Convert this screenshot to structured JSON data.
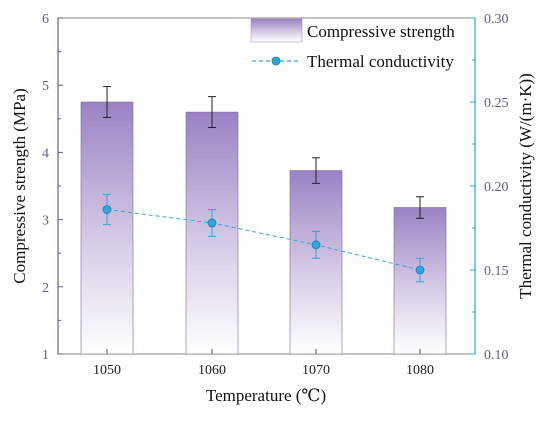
{
  "chart_data": {
    "type": "bar",
    "categories": [
      "1050",
      "1060",
      "1070",
      "1080"
    ],
    "series": [
      {
        "name": "Compressive strength",
        "type": "bar",
        "axis": "left",
        "values": [
          4.75,
          4.6,
          3.73,
          3.18
        ],
        "errors": [
          0.23,
          0.23,
          0.19,
          0.16
        ]
      },
      {
        "name": "Thermal conductivity",
        "type": "line",
        "axis": "right",
        "values": [
          0.186,
          0.178,
          0.165,
          0.15
        ],
        "errors": [
          0.009,
          0.008,
          0.008,
          0.007
        ]
      }
    ],
    "xlabel": "Temperature (℃)",
    "ylabel": "Compressive strength (MPa)",
    "y2label": "Thermal conductivity (W/(m·K))",
    "ylim": [
      1,
      6
    ],
    "y2lim": [
      0.1,
      0.3
    ],
    "yticks": [
      "1",
      "2",
      "3",
      "4",
      "5",
      "6"
    ],
    "y2ticks": [
      "0.10",
      "0.15",
      "0.20",
      "0.25",
      "0.30"
    ],
    "legend_position": "top-right",
    "colors": {
      "bar_top": "#9a82c4",
      "bar_bottom": "#ffffff",
      "bar_edge": "#7d6a9a",
      "line": "#2fa6de",
      "left_axis": "#6a5a8c",
      "right_axis": "#2aa8e0",
      "error": "#222222"
    }
  }
}
